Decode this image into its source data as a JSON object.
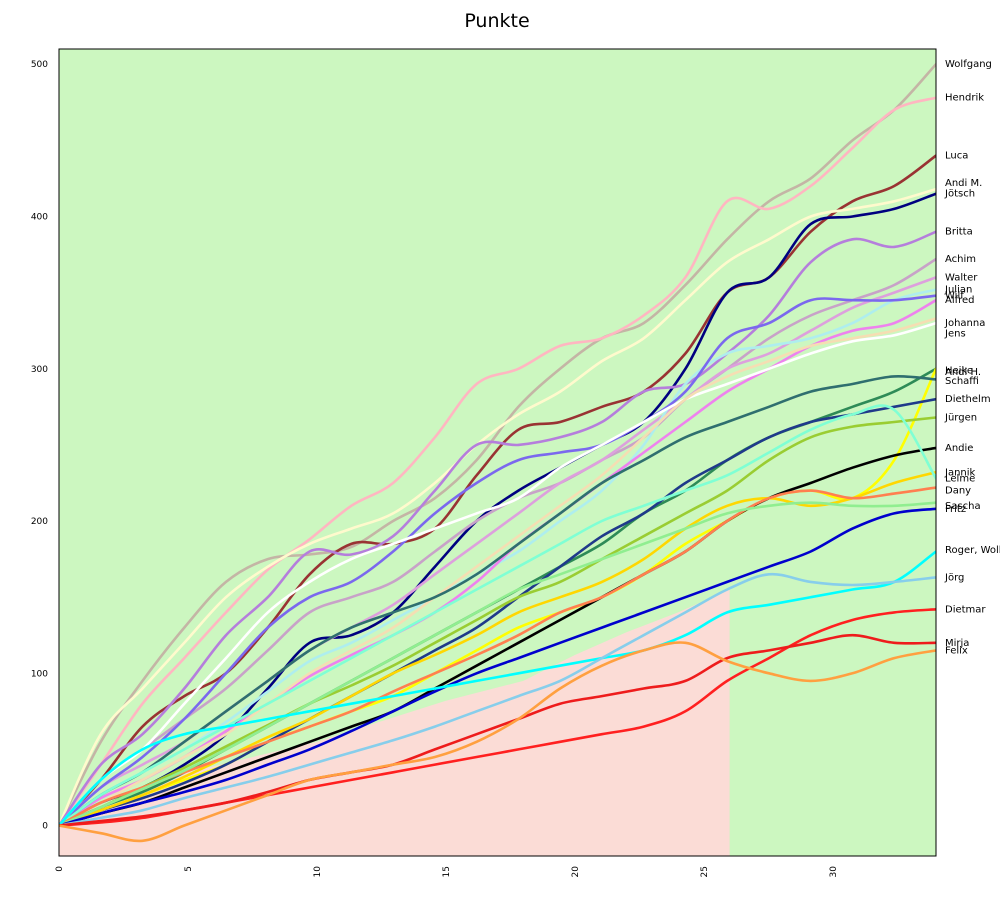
{
  "chart_data": {
    "type": "line",
    "title": "Punkte",
    "xlabel": "",
    "ylabel": "",
    "xlim": [
      0,
      34
    ],
    "ylim": [
      -20,
      510
    ],
    "x_ticks": [
      0,
      5,
      10,
      15,
      20,
      25,
      30
    ],
    "x_tick_labels": [
      "0",
      "5",
      "10",
      "15",
      "20",
      "25",
      "30"
    ],
    "y_ticks": [
      0,
      100,
      200,
      300,
      400,
      500
    ],
    "y_tick_labels": [
      "0",
      "100",
      "200",
      "300",
      "400",
      "500"
    ],
    "grid": false,
    "legend": "end labels",
    "background": {
      "upper_color": "#ccf7c0",
      "lower_color": "#fbdcd6",
      "lower_region_end_x": 26
    },
    "lower_region_boundary": [
      [
        0,
        0
      ],
      [
        5,
        35
      ],
      [
        10,
        55
      ],
      [
        15,
        82
      ],
      [
        18,
        95
      ],
      [
        20,
        112
      ],
      [
        22,
        127
      ],
      [
        24,
        140
      ],
      [
        26,
        155
      ]
    ],
    "series": [
      {
        "name": "Wolfgang",
        "color": "#c4b5a5",
        "values": [
          0,
          55,
          95,
          130,
          160,
          175,
          178,
          183,
          200,
          215,
          240,
          275,
          300,
          320,
          330,
          355,
          385,
          410,
          425,
          450,
          470,
          500
        ]
      },
      {
        "name": "Hendrik",
        "color": "#ffb6c1",
        "values": [
          0,
          40,
          80,
          110,
          140,
          168,
          188,
          210,
          225,
          255,
          290,
          300,
          315,
          320,
          335,
          360,
          410,
          405,
          420,
          445,
          470,
          478
        ]
      },
      {
        "name": "Luca",
        "color": "#993333",
        "values": [
          0,
          30,
          65,
          85,
          100,
          130,
          165,
          185,
          185,
          195,
          230,
          260,
          265,
          275,
          285,
          310,
          350,
          360,
          390,
          410,
          420,
          440
        ]
      },
      {
        "name": "Andi M.",
        "color": "#fffacd",
        "values": [
          0,
          60,
          90,
          120,
          150,
          170,
          185,
          195,
          205,
          225,
          250,
          270,
          285,
          305,
          320,
          345,
          370,
          385,
          400,
          405,
          410,
          418
        ]
      },
      {
        "name": "Jötsch",
        "color": "#000080",
        "values": [
          0,
          15,
          25,
          40,
          60,
          90,
          120,
          125,
          140,
          170,
          200,
          220,
          235,
          250,
          265,
          300,
          350,
          360,
          395,
          400,
          405,
          415
        ]
      },
      {
        "name": "Britta",
        "color": "#b57edc",
        "values": [
          0,
          40,
          60,
          90,
          125,
          150,
          180,
          178,
          190,
          220,
          250,
          250,
          255,
          265,
          285,
          290,
          310,
          335,
          370,
          385,
          380,
          390
        ]
      },
      {
        "name": "Achim",
        "color": "#c8a2c8",
        "values": [
          0,
          30,
          50,
          70,
          90,
          115,
          140,
          150,
          160,
          180,
          200,
          215,
          225,
          240,
          255,
          280,
          300,
          320,
          335,
          345,
          355,
          372
        ]
      },
      {
        "name": "Walter",
        "color": "#dda0dd",
        "values": [
          0,
          25,
          40,
          55,
          75,
          95,
          115,
          130,
          145,
          165,
          185,
          205,
          225,
          240,
          260,
          280,
          300,
          310,
          325,
          340,
          350,
          360
        ]
      },
      {
        "name": "Julian",
        "color": "#aeeeee",
        "values": [
          0,
          20,
          35,
          50,
          68,
          88,
          108,
          120,
          135,
          150,
          165,
          180,
          200,
          220,
          250,
          290,
          310,
          315,
          320,
          330,
          345,
          352
        ]
      },
      {
        "name": "Wilf",
        "color": "#7b68ee",
        "values": [
          0,
          25,
          45,
          70,
          100,
          130,
          150,
          160,
          180,
          205,
          225,
          240,
          245,
          250,
          265,
          285,
          320,
          330,
          345,
          345,
          345,
          348
        ]
      },
      {
        "name": "Alfred",
        "color": "#ee82ee",
        "values": [
          0,
          18,
          30,
          45,
          62,
          80,
          98,
          112,
          125,
          140,
          160,
          185,
          205,
          225,
          245,
          265,
          285,
          300,
          315,
          325,
          330,
          345
        ]
      },
      {
        "name": "Johanna",
        "color": "#ffffff",
        "values": [
          0,
          30,
          50,
          80,
          110,
          140,
          160,
          175,
          185,
          195,
          205,
          215,
          235,
          250,
          265,
          280,
          290,
          300,
          310,
          318,
          322,
          330
        ]
      },
      {
        "name": "Jens",
        "color": "#f5deb3",
        "values": [
          0,
          15,
          30,
          45,
          60,
          80,
          100,
          115,
          130,
          150,
          170,
          190,
          210,
          230,
          255,
          280,
          295,
          305,
          315,
          320,
          325,
          333
        ]
      },
      {
        "name": "Andi H.",
        "color": "#2e8b57",
        "values": [
          0,
          12,
          22,
          35,
          50,
          65,
          80,
          95,
          110,
          125,
          140,
          155,
          170,
          185,
          205,
          220,
          240,
          255,
          265,
          275,
          285,
          300
        ]
      },
      {
        "name": "Heike",
        "color": "#ffff00",
        "values": [
          0,
          10,
          20,
          30,
          40,
          55,
          65,
          75,
          85,
          100,
          115,
          130,
          140,
          150,
          165,
          185,
          200,
          215,
          220,
          215,
          240,
          300
        ]
      },
      {
        "name": "Schaffi",
        "color": "#2f6f6f",
        "values": [
          0,
          20,
          35,
          55,
          75,
          95,
          115,
          130,
          140,
          150,
          165,
          185,
          205,
          225,
          240,
          255,
          265,
          275,
          285,
          290,
          295,
          293
        ]
      },
      {
        "name": "Diethelm",
        "color": "#1f3a8a",
        "values": [
          0,
          10,
          18,
          28,
          40,
          55,
          70,
          85,
          100,
          115,
          130,
          150,
          170,
          190,
          205,
          225,
          240,
          255,
          265,
          270,
          275,
          280
        ]
      },
      {
        "name": "Jürgen",
        "color": "#9acd32",
        "values": [
          0,
          12,
          25,
          38,
          52,
          66,
          80,
          92,
          105,
          120,
          135,
          150,
          160,
          175,
          190,
          205,
          220,
          240,
          255,
          262,
          265,
          268
        ]
      },
      {
        "name": "Andie",
        "color": "#000000",
        "values": [
          0,
          8,
          15,
          25,
          35,
          45,
          55,
          65,
          75,
          90,
          105,
          120,
          135,
          150,
          165,
          180,
          200,
          215,
          225,
          235,
          243,
          248
        ]
      },
      {
        "name": "Jannik",
        "color": "#ffd700",
        "values": [
          0,
          10,
          20,
          32,
          45,
          58,
          70,
          85,
          100,
          112,
          125,
          140,
          150,
          160,
          175,
          195,
          210,
          215,
          210,
          215,
          225,
          232
        ]
      },
      {
        "name": "Lelme",
        "color": "#7fffd4",
        "values": [
          0,
          20,
          35,
          50,
          65,
          80,
          95,
          110,
          125,
          140,
          155,
          170,
          185,
          200,
          210,
          220,
          230,
          245,
          260,
          270,
          273,
          228
        ]
      },
      {
        "name": "Dany",
        "color": "#ff7f50",
        "values": [
          0,
          15,
          25,
          35,
          45,
          55,
          65,
          75,
          88,
          100,
          112,
          125,
          140,
          150,
          165,
          180,
          200,
          215,
          220,
          215,
          218,
          222
        ]
      },
      {
        "name": "Sascha",
        "color": "#90ee90",
        "values": [
          0,
          12,
          24,
          36,
          50,
          65,
          80,
          95,
          110,
          125,
          140,
          155,
          165,
          175,
          185,
          195,
          205,
          210,
          212,
          210,
          210,
          212
        ]
      },
      {
        "name": "Fritz",
        "color": "#0000cd",
        "values": [
          0,
          8,
          15,
          22,
          30,
          40,
          50,
          62,
          75,
          88,
          100,
          110,
          120,
          130,
          140,
          150,
          160,
          170,
          180,
          195,
          205,
          208
        ]
      },
      {
        "name": "Roger, Wolle",
        "color": "#00ffff",
        "values": [
          0,
          30,
          50,
          60,
          65,
          70,
          75,
          80,
          85,
          90,
          95,
          100,
          105,
          110,
          115,
          125,
          140,
          145,
          150,
          155,
          160,
          180
        ]
      },
      {
        "name": "Jörg",
        "color": "#87ceeb",
        "values": [
          0,
          5,
          10,
          18,
          25,
          32,
          40,
          48,
          56,
          65,
          75,
          85,
          95,
          110,
          125,
          140,
          155,
          165,
          160,
          158,
          160,
          163
        ]
      },
      {
        "name": "Dietmar",
        "color": "#ff2020",
        "values": [
          0,
          2,
          5,
          10,
          15,
          20,
          25,
          30,
          35,
          40,
          45,
          50,
          55,
          60,
          65,
          75,
          95,
          110,
          125,
          135,
          140,
          142
        ]
      },
      {
        "name": "Mirja",
        "color": "#ee1c1c",
        "values": [
          0,
          3,
          6,
          10,
          15,
          22,
          30,
          35,
          40,
          50,
          60,
          70,
          80,
          85,
          90,
          95,
          110,
          115,
          120,
          125,
          120,
          120
        ]
      },
      {
        "name": "Felix",
        "color": "#ffa040",
        "values": [
          0,
          -5,
          -10,
          0,
          10,
          20,
          30,
          35,
          40,
          45,
          55,
          70,
          90,
          105,
          115,
          120,
          108,
          100,
          95,
          100,
          110,
          115
        ]
      }
    ],
    "end_labels": [
      {
        "text": "Wolfgang",
        "y": 500
      },
      {
        "text": "Hendrik",
        "y": 478
      },
      {
        "text": "Luca",
        "y": 440
      },
      {
        "text": "Andi M.",
        "y": 422
      },
      {
        "text": "Jötsch",
        "y": 415
      },
      {
        "text": "Britta",
        "y": 390
      },
      {
        "text": "Achim",
        "y": 372
      },
      {
        "text": "Walter",
        "y": 360
      },
      {
        "text": "Julian",
        "y": 352
      },
      {
        "text": "Wilf",
        "y": 348
      },
      {
        "text": "Alfred",
        "y": 345
      },
      {
        "text": "Johanna",
        "y": 330
      },
      {
        "text": "Jens",
        "y": 323
      },
      {
        "text": "Andi H.",
        "y": 298
      },
      {
        "text": "Heike",
        "y": 299
      },
      {
        "text": "Schaffi",
        "y": 292
      },
      {
        "text": "Diethelm",
        "y": 280
      },
      {
        "text": "Jürgen",
        "y": 268
      },
      {
        "text": "Andie",
        "y": 248
      },
      {
        "text": "Jannik",
        "y": 232
      },
      {
        "text": "Lelme",
        "y": 228
      },
      {
        "text": "Dany",
        "y": 220
      },
      {
        "text": "Sascha",
        "y": 210
      },
      {
        "text": "Fritz",
        "y": 208
      },
      {
        "text": "Roger, Wolle",
        "y": 181
      },
      {
        "text": "Jörg",
        "y": 163
      },
      {
        "text": "Dietmar",
        "y": 142
      },
      {
        "text": "Mirja",
        "y": 120
      },
      {
        "text": "Felix",
        "y": 115
      }
    ]
  }
}
